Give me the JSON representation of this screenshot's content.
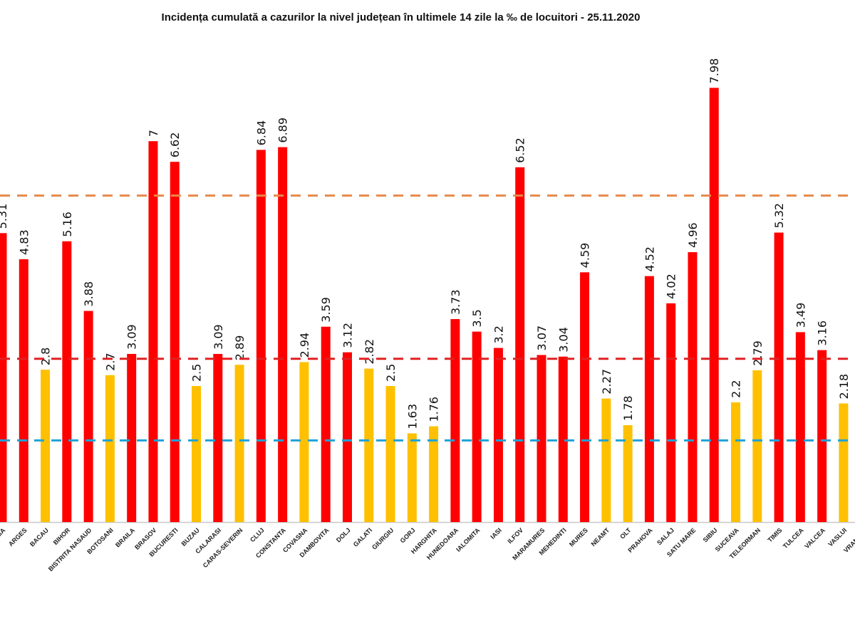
{
  "chart_data": {
    "type": "bar",
    "title": "Incidența cumulată a cazurilor la nivel județean în ultimele 14 zile la ‰ de locuitori - 25.11.2020",
    "xlabel": "",
    "ylabel": "",
    "ylim": [
      0,
      8
    ],
    "grid": false,
    "categories": [
      "ALBA",
      "ARGES",
      "BACAU",
      "BIHOR",
      "BISTRITA NASAUD",
      "BOTOSANI",
      "BRAILA",
      "BRASOV",
      "BUCURESTI",
      "BUZAU",
      "CALARASI",
      "CARAS-SEVERIN",
      "CLUJ",
      "CONSTANTA",
      "COVASNA",
      "DAMBOVITA",
      "DOLJ",
      "GALATI",
      "GIURGIU",
      "GORJ",
      "HARGHITA",
      "HUNEDOARA",
      "IALOMITA",
      "IASI",
      "ILFOV",
      "MARAMURES",
      "MEHEDINTI",
      "MURES",
      "NEAMT",
      "OLT",
      "PRAHOVA",
      "SALAJ",
      "SATU MARE",
      "SIBIU",
      "SUCEAVA",
      "TELEORMAN",
      "TIMIS",
      "TULCEA",
      "VALCEA",
      "VASLUI",
      "VRANCEA"
    ],
    "values": [
      5.31,
      4.83,
      2.8,
      5.16,
      3.88,
      2.7,
      3.09,
      7,
      6.62,
      2.5,
      3.09,
      2.89,
      6.84,
      6.89,
      2.94,
      3.59,
      3.12,
      2.82,
      2.5,
      1.63,
      1.76,
      3.73,
      3.5,
      3.2,
      6.52,
      3.07,
      3.04,
      4.59,
      2.27,
      1.78,
      4.52,
      4.02,
      4.96,
      7.98,
      2.2,
      2.79,
      5.32,
      3.49,
      3.16,
      2.18,
      null
    ],
    "bar_colors": {
      "above_3": "#FF0000",
      "below_3": "#FFC000"
    },
    "reference_lines": [
      {
        "value": 6,
        "color": "#E8894A",
        "style": "dashed"
      },
      {
        "value": 3,
        "color": "#E02020",
        "style": "dashed"
      },
      {
        "value": 1.5,
        "color": "#1FA2D6",
        "style": "dashed"
      }
    ]
  }
}
